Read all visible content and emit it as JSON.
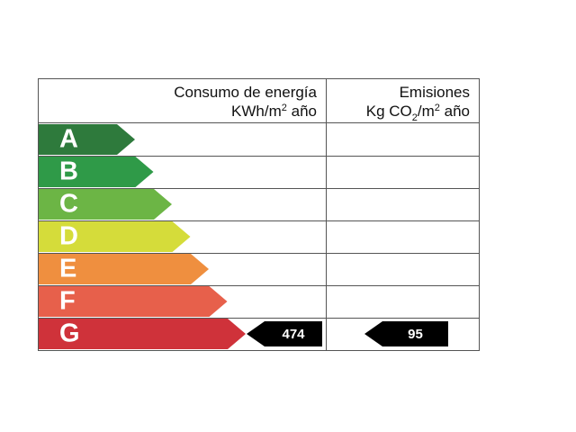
{
  "header": {
    "consumption": {
      "title": "Consumo de energía",
      "unit": [
        "KWh/m",
        "2",
        " año"
      ]
    },
    "emissions": {
      "title": "Emisiones",
      "unit": [
        "Kg CO",
        "2",
        "/m",
        "2",
        " año"
      ]
    }
  },
  "ratings": [
    {
      "letter": "A",
      "color": "#2e7a3c"
    },
    {
      "letter": "B",
      "color": "#2f9a48"
    },
    {
      "letter": "C",
      "color": "#6cb545"
    },
    {
      "letter": "D",
      "color": "#d5dc3a"
    },
    {
      "letter": "E",
      "color": "#ef8f3f"
    },
    {
      "letter": "F",
      "color": "#e7604b"
    },
    {
      "letter": "G",
      "color": "#cf323a"
    }
  ],
  "indicators": {
    "consumption": {
      "value": 474,
      "rating": "G"
    },
    "emissions": {
      "value": 95,
      "rating": "G"
    }
  }
}
